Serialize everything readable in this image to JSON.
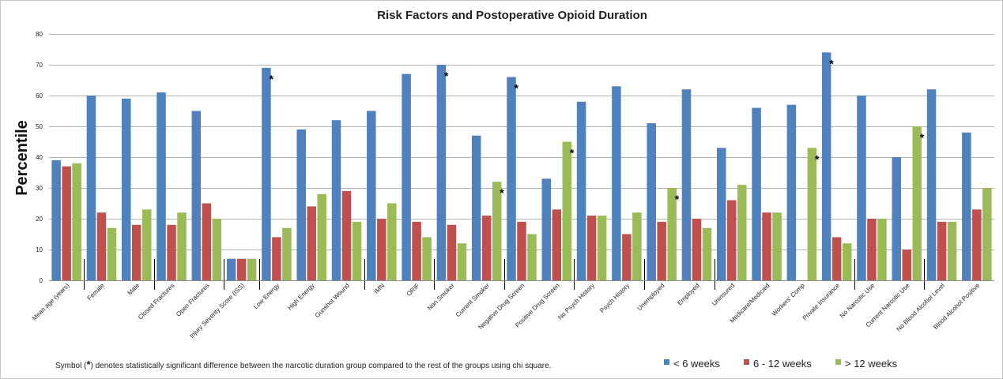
{
  "chart_data": {
    "type": "bar",
    "title": "Risk Factors and Postoperative Opioid Duration",
    "ylabel": "Percentile",
    "xlabel": "",
    "ylim": [
      0,
      80
    ],
    "yticks": [
      0,
      10,
      20,
      30,
      40,
      50,
      60,
      70,
      80
    ],
    "grid": true,
    "legend_position": "bottom-right",
    "categories": [
      "Mean age (years)",
      "Female",
      "Male",
      "Closed Fractures",
      "Open Fractures",
      "Injury Severity Score (ISS)",
      "Low Energy",
      "High Energy",
      "Gunshot Wound",
      "IMN",
      "ORIF",
      "Non Smoker",
      "Current Smoker",
      "Negative Drug Screen",
      "Positive Drug Screen",
      "No Psych History",
      "Psych History",
      "Unemployed",
      "Employed",
      "Uninsured",
      "Medicare/Medicaid",
      "Workers' Comp",
      "Private Insurance",
      "No Narcotic Use",
      "Current Narcotic Use",
      "No Blood Alcohol Level",
      "Blood Alcohol Positive"
    ],
    "series": [
      {
        "name": "< 6 weeks",
        "color": "#4F81BD",
        "values": [
          39,
          60,
          59,
          61,
          55,
          7,
          69,
          49,
          52,
          55,
          67,
          70,
          47,
          66,
          33,
          58,
          63,
          51,
          62,
          43,
          56,
          57,
          74,
          60,
          40,
          62,
          48
        ]
      },
      {
        "name": "6 - 12 weeks",
        "color": "#C0504D",
        "values": [
          37,
          22,
          18,
          18,
          25,
          7,
          14,
          24,
          29,
          20,
          19,
          18,
          21,
          19,
          23,
          21,
          15,
          19,
          20,
          26,
          22,
          0,
          14,
          20,
          10,
          19,
          23
        ]
      },
      {
        "name": "> 12 weeks",
        "color": "#9BBB59",
        "values": [
          38,
          17,
          23,
          22,
          20,
          7,
          17,
          28,
          19,
          25,
          14,
          12,
          32,
          15,
          45,
          21,
          22,
          30,
          17,
          31,
          22,
          43,
          12,
          20,
          50,
          19,
          30
        ]
      }
    ],
    "significance_markers": [
      {
        "category": "Low Energy",
        "series": "< 6 weeks",
        "symbol": "*"
      },
      {
        "category": "Non Smoker",
        "series": "< 6 weeks",
        "symbol": "*"
      },
      {
        "category": "Current Smoker",
        "series": "> 12 weeks",
        "symbol": "*"
      },
      {
        "category": "Negative Drug Screen",
        "series": "< 6 weeks",
        "symbol": "*"
      },
      {
        "category": "Positive Drug Screen",
        "series": "> 12 weeks",
        "symbol": "*"
      },
      {
        "category": "Unemployed",
        "series": "> 12 weeks",
        "symbol": "*"
      },
      {
        "category": "Workers' Comp",
        "series": "> 12 weeks",
        "symbol": "*"
      },
      {
        "category": "Private Insurance",
        "series": "< 6 weeks",
        "symbol": "*"
      },
      {
        "category": "Current Narcotic Use",
        "series": "> 12 weeks",
        "symbol": "*"
      }
    ],
    "group_separators_after": [
      "Mean age (years)",
      "Male",
      "Open Fractures",
      "Injury Severity Score (ISS)",
      "Gunshot Wound",
      "ORIF",
      "Current Smoker",
      "Positive Drug Screen",
      "Psych History",
      "Employed",
      "Private Insurance",
      "Current Narcotic Use"
    ],
    "footnote": {
      "prefix": "Symbol (",
      "symbol": "*",
      "suffix": ") denotes statistically significant difference between the narcotic duration group compared to the rest of the groups using chi square."
    }
  }
}
